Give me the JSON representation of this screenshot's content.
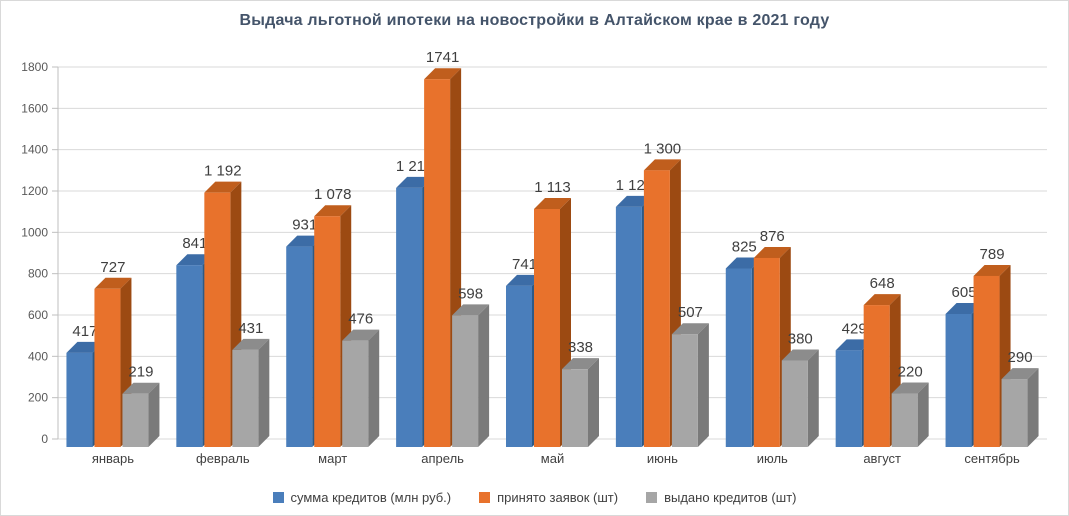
{
  "title": "Выдача льготной ипотеки на новостройки в Алтайском крае в 2021 году",
  "colors": {
    "background": "#ffffff",
    "border": "#d9d9d9",
    "grid": "#d9d9d9",
    "axis": "#bfbfbf",
    "title_text": "#44546a",
    "tick_text": "#595959",
    "category_text": "#404040",
    "value_label_text": "#3f3f3f",
    "legend_text": "#404040"
  },
  "chart_data": {
    "type": "bar",
    "style": "3d-clustered-column",
    "title": "Выдача льготной ипотеки на новостройки в Алтайском крае в 2021 году",
    "categories": [
      "январь",
      "февраль",
      "март",
      "апрель",
      "май",
      "июнь",
      "июль",
      "август",
      "сентябрь"
    ],
    "series": [
      {
        "name": "сумма кредитов (млн руб.)",
        "color": "#4a7ebb",
        "top_color": "#3c6ca6",
        "side_color": "#2c5987",
        "values": [
          417,
          841,
          931,
          1215,
          741,
          1123,
          825,
          429,
          605
        ],
        "labels": [
          "417",
          "841",
          "931",
          "1 215",
          "741",
          "1 123",
          "825",
          "429",
          "605"
        ]
      },
      {
        "name": "принято заявок (шт)",
        "color": "#e8722c",
        "top_color": "#c05e1d",
        "side_color": "#9c4a12",
        "values": [
          727,
          1192,
          1078,
          1741,
          1113,
          1300,
          876,
          648,
          789
        ],
        "labels": [
          "727",
          "1 192",
          "1 078",
          "1741",
          "1 113",
          "1 300",
          "876",
          "648",
          "789"
        ]
      },
      {
        "name": "выдано кредитов (шт)",
        "color": "#a6a6a6",
        "top_color": "#8c8c8c",
        "side_color": "#7a7a7a",
        "values": [
          219,
          431,
          476,
          598,
          338,
          507,
          380,
          220,
          290
        ],
        "labels": [
          "219",
          "431",
          "476",
          "598",
          "338",
          "507",
          "380",
          "220",
          "290"
        ]
      }
    ],
    "ylim": [
      0,
      1800
    ],
    "ytick_step": 200,
    "ytick_labels": [
      "0",
      "200",
      "400",
      "600",
      "800",
      "1000",
      "1200",
      "1400",
      "1600",
      "1800"
    ],
    "grid": true,
    "legend_position": "bottom"
  }
}
